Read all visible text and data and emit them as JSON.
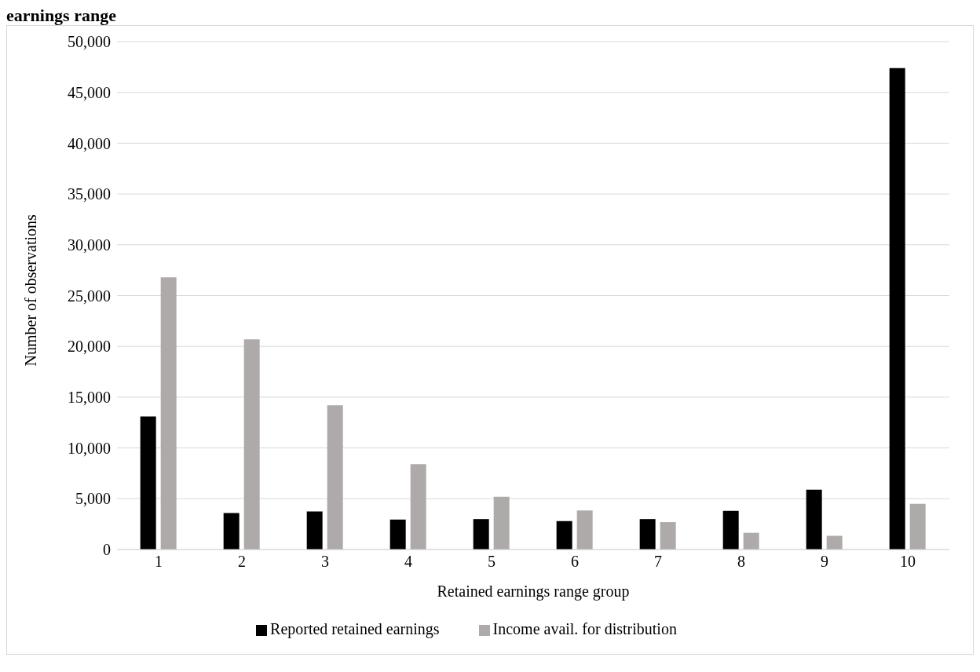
{
  "chart_data": {
    "type": "bar",
    "title": "earnings range",
    "xlabel": "Retained earnings range group",
    "ylabel": "Number of observations",
    "categories": [
      "1",
      "2",
      "3",
      "4",
      "5",
      "6",
      "7",
      "8",
      "9",
      "10"
    ],
    "series": [
      {
        "name": "Reported retained earnings",
        "color": "#000000",
        "values": [
          13100,
          3600,
          3750,
          2950,
          3000,
          2800,
          3000,
          3800,
          5900,
          47400
        ]
      },
      {
        "name": "Income avail. for distribution",
        "color": "#aeaaaa",
        "values": [
          26800,
          20700,
          14200,
          8400,
          5200,
          3850,
          2700,
          1650,
          1350,
          4500
        ]
      }
    ],
    "ylim": [
      0,
      50000
    ],
    "yticks": [
      0,
      {
        "value": 5000,
        "label": "5,000"
      },
      {
        "value": 10000,
        "label": "10,000"
      },
      {
        "value": 15000,
        "label": "15,000"
      },
      {
        "value": 20000,
        "label": "20,000"
      },
      {
        "value": 25000,
        "label": "25,000"
      },
      {
        "value": 30000,
        "label": "30,000"
      },
      {
        "value": 35000,
        "label": "35,000"
      },
      {
        "value": 40000,
        "label": "40,000"
      },
      {
        "value": 45000,
        "label": "45,000"
      },
      {
        "value": 50000,
        "label": "50,000"
      }
    ],
    "grid": "y",
    "legend": "bottom"
  }
}
